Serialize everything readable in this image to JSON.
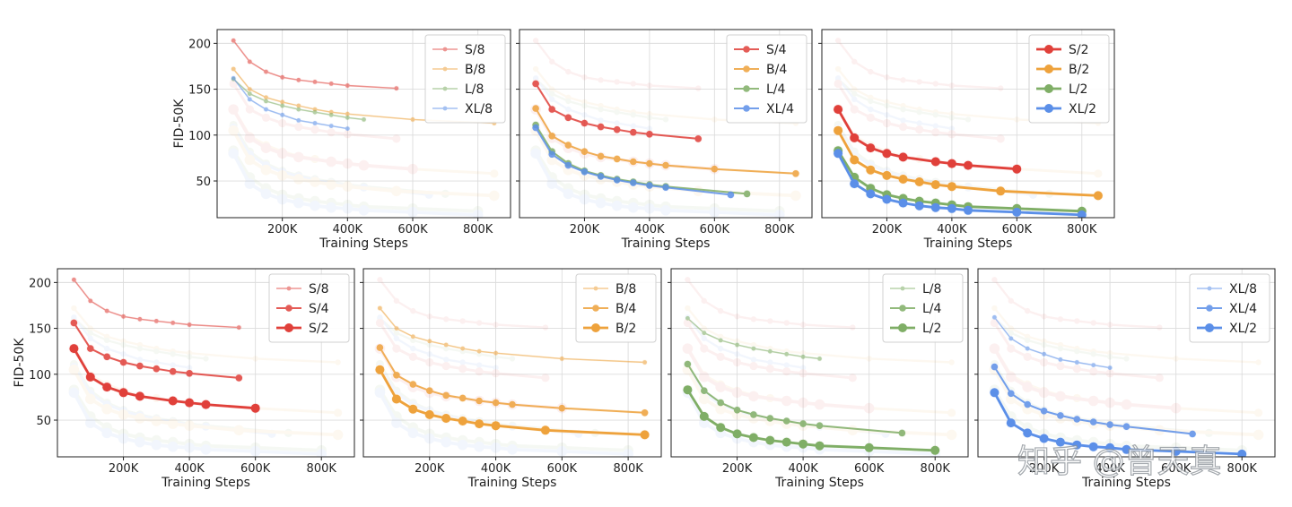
{
  "watermark": "知乎 @曾天真",
  "colors": {
    "S": "#e0403a",
    "B": "#eea23c",
    "L": "#7fae66",
    "XL": "#5b8fe8"
  },
  "chart_data": [
    {
      "type": "line",
      "title": "",
      "xlabel": "Training Steps",
      "ylabel": "FID-50K",
      "xlim": [
        0,
        900000
      ],
      "ylim": [
        10,
        215
      ],
      "grid": true,
      "legend": "top-right",
      "xticks": [
        "200K",
        "400K",
        "600K",
        "800K"
      ],
      "yticks": [
        "200",
        "150",
        "100",
        "50"
      ],
      "series": [
        {
          "name": "S/8",
          "family": "S",
          "patch": 8,
          "x": [
            50000,
            100000,
            150000,
            200000,
            250000,
            300000,
            350000,
            400000,
            550000
          ],
          "y": [
            203,
            180,
            169,
            163,
            160,
            158,
            156,
            154,
            151
          ]
        },
        {
          "name": "B/8",
          "family": "B",
          "patch": 8,
          "x": [
            50000,
            100000,
            150000,
            200000,
            250000,
            300000,
            350000,
            400000,
            600000,
            850000
          ],
          "y": [
            172,
            150,
            141,
            136,
            132,
            128,
            125,
            123,
            117,
            113
          ]
        },
        {
          "name": "L/8",
          "family": "L",
          "patch": 8,
          "x": [
            50000,
            100000,
            150000,
            200000,
            250000,
            300000,
            350000,
            400000,
            450000
          ],
          "y": [
            161,
            145,
            137,
            132,
            128,
            125,
            122,
            119,
            117
          ]
        },
        {
          "name": "XL/8",
          "family": "XL",
          "patch": 8,
          "x": [
            50000,
            100000,
            150000,
            200000,
            250000,
            300000,
            350000,
            400000
          ],
          "y": [
            162,
            139,
            128,
            122,
            116,
            113,
            110,
            107
          ]
        }
      ]
    },
    {
      "type": "line",
      "title": "",
      "xlabel": "Training Steps",
      "ylabel": "",
      "xlim": [
        0,
        900000
      ],
      "ylim": [
        10,
        215
      ],
      "grid": true,
      "legend": "top-right",
      "xticks": [
        "200K",
        "400K",
        "600K",
        "800K"
      ],
      "yticks": [],
      "series": [
        {
          "name": "S/4",
          "family": "S",
          "patch": 4,
          "x": [
            50000,
            100000,
            150000,
            200000,
            250000,
            300000,
            350000,
            400000,
            550000
          ],
          "y": [
            156,
            128,
            119,
            113,
            109,
            106,
            103,
            101,
            96
          ]
        },
        {
          "name": "B/4",
          "family": "B",
          "patch": 4,
          "x": [
            50000,
            100000,
            150000,
            200000,
            250000,
            300000,
            350000,
            400000,
            450000,
            600000,
            850000
          ],
          "y": [
            129,
            99,
            89,
            82,
            77,
            74,
            71,
            69,
            67,
            63,
            58
          ]
        },
        {
          "name": "L/4",
          "family": "L",
          "patch": 4,
          "x": [
            50000,
            100000,
            150000,
            200000,
            250000,
            300000,
            350000,
            400000,
            450000,
            700000
          ],
          "y": [
            111,
            82,
            69,
            61,
            56,
            52,
            49,
            46,
            44,
            36
          ]
        },
        {
          "name": "XL/4",
          "family": "XL",
          "patch": 4,
          "x": [
            50000,
            100000,
            150000,
            200000,
            250000,
            300000,
            350000,
            400000,
            450000,
            650000
          ],
          "y": [
            108,
            79,
            67,
            60,
            55,
            51,
            48,
            45,
            43,
            35
          ]
        }
      ]
    },
    {
      "type": "line",
      "title": "",
      "xlabel": "Training Steps",
      "ylabel": "",
      "xlim": [
        0,
        900000
      ],
      "ylim": [
        10,
        215
      ],
      "grid": true,
      "legend": "top-right",
      "xticks": [
        "200K",
        "400K",
        "600K",
        "800K"
      ],
      "yticks": [],
      "series": [
        {
          "name": "S/2",
          "family": "S",
          "patch": 2,
          "x": [
            50000,
            100000,
            150000,
            200000,
            250000,
            350000,
            400000,
            450000,
            600000
          ],
          "y": [
            128,
            97,
            86,
            80,
            76,
            71,
            69,
            67,
            63
          ]
        },
        {
          "name": "B/2",
          "family": "B",
          "patch": 2,
          "x": [
            50000,
            100000,
            150000,
            200000,
            250000,
            300000,
            350000,
            400000,
            550000,
            850000
          ],
          "y": [
            105,
            73,
            62,
            56,
            52,
            49,
            46,
            44,
            39,
            34
          ]
        },
        {
          "name": "L/2",
          "family": "L",
          "patch": 2,
          "x": [
            50000,
            100000,
            150000,
            200000,
            250000,
            300000,
            350000,
            400000,
            450000,
            600000,
            800000
          ],
          "y": [
            83,
            54,
            42,
            35,
            31,
            28,
            26,
            24,
            22,
            20,
            17
          ]
        },
        {
          "name": "XL/2",
          "family": "XL",
          "patch": 2,
          "x": [
            50000,
            100000,
            150000,
            200000,
            250000,
            300000,
            350000,
            400000,
            450000,
            600000,
            800000
          ],
          "y": [
            80,
            47,
            36,
            30,
            26,
            23,
            21,
            20,
            18,
            16,
            13
          ]
        }
      ]
    },
    {
      "type": "line",
      "title": "",
      "xlabel": "Training Steps",
      "ylabel": "FID-50K",
      "xlim": [
        0,
        900000
      ],
      "ylim": [
        10,
        215
      ],
      "grid": true,
      "legend": "top-right",
      "xticks": [
        "200K",
        "400K",
        "600K",
        "800K"
      ],
      "yticks": [
        "200",
        "150",
        "100",
        "50"
      ],
      "series": [
        {
          "name": "S/8",
          "family": "S",
          "patch": 8,
          "x": [
            50000,
            100000,
            150000,
            200000,
            250000,
            300000,
            350000,
            400000,
            550000
          ],
          "y": [
            203,
            180,
            169,
            163,
            160,
            158,
            156,
            154,
            151
          ]
        },
        {
          "name": "S/4",
          "family": "S",
          "patch": 4,
          "x": [
            50000,
            100000,
            150000,
            200000,
            250000,
            300000,
            350000,
            400000,
            550000
          ],
          "y": [
            156,
            128,
            119,
            113,
            109,
            106,
            103,
            101,
            96
          ]
        },
        {
          "name": "S/2",
          "family": "S",
          "patch": 2,
          "x": [
            50000,
            100000,
            150000,
            200000,
            250000,
            350000,
            400000,
            450000,
            600000
          ],
          "y": [
            128,
            97,
            86,
            80,
            76,
            71,
            69,
            67,
            63
          ]
        }
      ]
    },
    {
      "type": "line",
      "title": "",
      "xlabel": "Training Steps",
      "ylabel": "",
      "xlim": [
        0,
        900000
      ],
      "ylim": [
        10,
        215
      ],
      "grid": true,
      "legend": "top-right",
      "xticks": [
        "200K",
        "400K",
        "600K",
        "800K"
      ],
      "yticks": [],
      "series": [
        {
          "name": "B/8",
          "family": "B",
          "patch": 8,
          "x": [
            50000,
            100000,
            150000,
            200000,
            250000,
            300000,
            350000,
            400000,
            600000,
            850000
          ],
          "y": [
            172,
            150,
            141,
            136,
            132,
            128,
            125,
            123,
            117,
            113
          ]
        },
        {
          "name": "B/4",
          "family": "B",
          "patch": 4,
          "x": [
            50000,
            100000,
            150000,
            200000,
            250000,
            300000,
            350000,
            400000,
            450000,
            600000,
            850000
          ],
          "y": [
            129,
            99,
            89,
            82,
            77,
            74,
            71,
            69,
            67,
            63,
            58
          ]
        },
        {
          "name": "B/2",
          "family": "B",
          "patch": 2,
          "x": [
            50000,
            100000,
            150000,
            200000,
            250000,
            300000,
            350000,
            400000,
            550000,
            850000
          ],
          "y": [
            105,
            73,
            62,
            56,
            52,
            49,
            46,
            44,
            39,
            34
          ]
        }
      ]
    },
    {
      "type": "line",
      "title": "",
      "xlabel": "Training Steps",
      "ylabel": "",
      "xlim": [
        0,
        900000
      ],
      "ylim": [
        10,
        215
      ],
      "grid": true,
      "legend": "top-right",
      "xticks": [
        "200K",
        "400K",
        "600K",
        "800K"
      ],
      "yticks": [],
      "series": [
        {
          "name": "L/8",
          "family": "L",
          "patch": 8,
          "x": [
            50000,
            100000,
            150000,
            200000,
            250000,
            300000,
            350000,
            400000,
            450000
          ],
          "y": [
            161,
            145,
            137,
            132,
            128,
            125,
            122,
            119,
            117
          ]
        },
        {
          "name": "L/4",
          "family": "L",
          "patch": 4,
          "x": [
            50000,
            100000,
            150000,
            200000,
            250000,
            300000,
            350000,
            400000,
            450000,
            700000
          ],
          "y": [
            111,
            82,
            69,
            61,
            56,
            52,
            49,
            46,
            44,
            36
          ]
        },
        {
          "name": "L/2",
          "family": "L",
          "patch": 2,
          "x": [
            50000,
            100000,
            150000,
            200000,
            250000,
            300000,
            350000,
            400000,
            450000,
            600000,
            800000
          ],
          "y": [
            83,
            54,
            42,
            35,
            31,
            28,
            26,
            24,
            22,
            20,
            17
          ]
        }
      ]
    },
    {
      "type": "line",
      "title": "",
      "xlabel": "Training Steps",
      "ylabel": "",
      "xlim": [
        0,
        900000
      ],
      "ylim": [
        10,
        215
      ],
      "grid": true,
      "legend": "top-right",
      "xticks": [
        "200K",
        "400K",
        "600K",
        "800K"
      ],
      "yticks": [],
      "series": [
        {
          "name": "XL/8",
          "family": "XL",
          "patch": 8,
          "x": [
            50000,
            100000,
            150000,
            200000,
            250000,
            300000,
            350000,
            400000
          ],
          "y": [
            162,
            139,
            128,
            122,
            116,
            113,
            110,
            107
          ]
        },
        {
          "name": "XL/4",
          "family": "XL",
          "patch": 4,
          "x": [
            50000,
            100000,
            150000,
            200000,
            250000,
            300000,
            350000,
            400000,
            450000,
            650000
          ],
          "y": [
            108,
            79,
            67,
            60,
            55,
            51,
            48,
            45,
            43,
            35
          ]
        },
        {
          "name": "XL/2",
          "family": "XL",
          "patch": 2,
          "x": [
            50000,
            100000,
            150000,
            200000,
            250000,
            300000,
            350000,
            400000,
            450000,
            600000,
            800000
          ],
          "y": [
            80,
            47,
            36,
            30,
            26,
            23,
            21,
            20,
            18,
            16,
            13
          ]
        }
      ]
    }
  ]
}
